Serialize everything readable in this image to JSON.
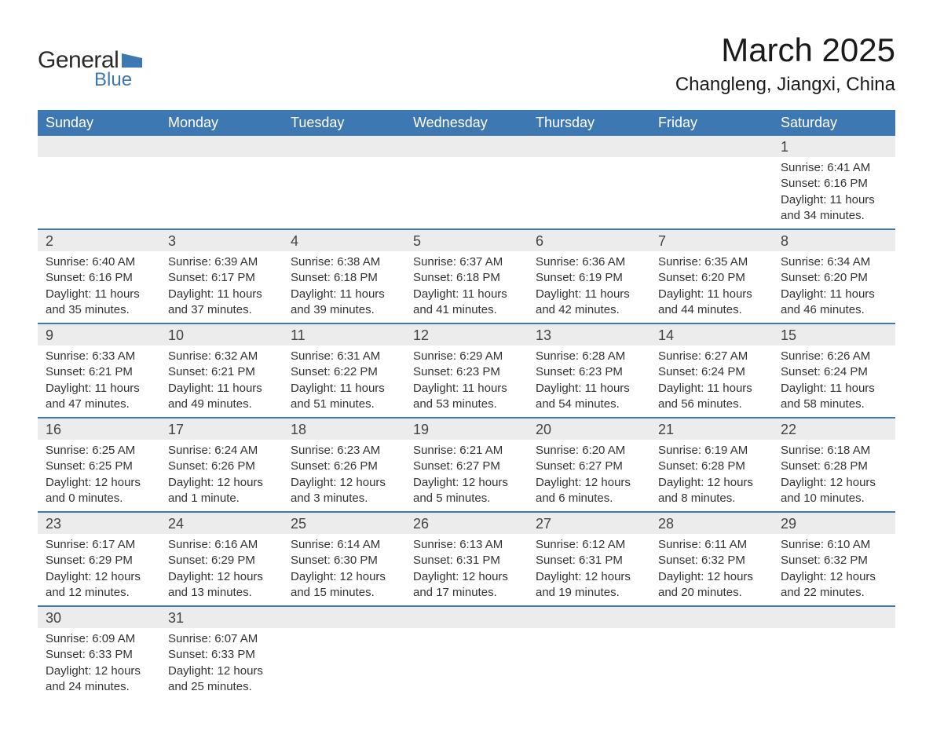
{
  "logo": {
    "text_general": "General",
    "text_blue": "Blue",
    "shape_color": "#3e78b3"
  },
  "title": "March 2025",
  "location": "Changleng, Jiangxi, China",
  "colors": {
    "header_bg": "#3e78b3",
    "header_text": "#ffffff",
    "daynum_bg": "#ececec",
    "row_divider": "#3e78b3",
    "text": "#333333",
    "page_bg": "#ffffff"
  },
  "typography": {
    "title_fontsize": 42,
    "location_fontsize": 24,
    "dayheader_fontsize": 18,
    "daynum_fontsize": 18,
    "detail_fontsize": 15,
    "font_family": "Arial"
  },
  "layout": {
    "columns": 7,
    "rows": 6,
    "first_day_column_index": 6
  },
  "day_headers": [
    "Sunday",
    "Monday",
    "Tuesday",
    "Wednesday",
    "Thursday",
    "Friday",
    "Saturday"
  ],
  "labels": {
    "sunrise": "Sunrise:",
    "sunset": "Sunset:",
    "daylight": "Daylight:"
  },
  "days": [
    {
      "n": "1",
      "sunrise": "6:41 AM",
      "sunset": "6:16 PM",
      "daylight": "11 hours and 34 minutes."
    },
    {
      "n": "2",
      "sunrise": "6:40 AM",
      "sunset": "6:16 PM",
      "daylight": "11 hours and 35 minutes."
    },
    {
      "n": "3",
      "sunrise": "6:39 AM",
      "sunset": "6:17 PM",
      "daylight": "11 hours and 37 minutes."
    },
    {
      "n": "4",
      "sunrise": "6:38 AM",
      "sunset": "6:18 PM",
      "daylight": "11 hours and 39 minutes."
    },
    {
      "n": "5",
      "sunrise": "6:37 AM",
      "sunset": "6:18 PM",
      "daylight": "11 hours and 41 minutes."
    },
    {
      "n": "6",
      "sunrise": "6:36 AM",
      "sunset": "6:19 PM",
      "daylight": "11 hours and 42 minutes."
    },
    {
      "n": "7",
      "sunrise": "6:35 AM",
      "sunset": "6:20 PM",
      "daylight": "11 hours and 44 minutes."
    },
    {
      "n": "8",
      "sunrise": "6:34 AM",
      "sunset": "6:20 PM",
      "daylight": "11 hours and 46 minutes."
    },
    {
      "n": "9",
      "sunrise": "6:33 AM",
      "sunset": "6:21 PM",
      "daylight": "11 hours and 47 minutes."
    },
    {
      "n": "10",
      "sunrise": "6:32 AM",
      "sunset": "6:21 PM",
      "daylight": "11 hours and 49 minutes."
    },
    {
      "n": "11",
      "sunrise": "6:31 AM",
      "sunset": "6:22 PM",
      "daylight": "11 hours and 51 minutes."
    },
    {
      "n": "12",
      "sunrise": "6:29 AM",
      "sunset": "6:23 PM",
      "daylight": "11 hours and 53 minutes."
    },
    {
      "n": "13",
      "sunrise": "6:28 AM",
      "sunset": "6:23 PM",
      "daylight": "11 hours and 54 minutes."
    },
    {
      "n": "14",
      "sunrise": "6:27 AM",
      "sunset": "6:24 PM",
      "daylight": "11 hours and 56 minutes."
    },
    {
      "n": "15",
      "sunrise": "6:26 AM",
      "sunset": "6:24 PM",
      "daylight": "11 hours and 58 minutes."
    },
    {
      "n": "16",
      "sunrise": "6:25 AM",
      "sunset": "6:25 PM",
      "daylight": "12 hours and 0 minutes."
    },
    {
      "n": "17",
      "sunrise": "6:24 AM",
      "sunset": "6:26 PM",
      "daylight": "12 hours and 1 minute."
    },
    {
      "n": "18",
      "sunrise": "6:23 AM",
      "sunset": "6:26 PM",
      "daylight": "12 hours and 3 minutes."
    },
    {
      "n": "19",
      "sunrise": "6:21 AM",
      "sunset": "6:27 PM",
      "daylight": "12 hours and 5 minutes."
    },
    {
      "n": "20",
      "sunrise": "6:20 AM",
      "sunset": "6:27 PM",
      "daylight": "12 hours and 6 minutes."
    },
    {
      "n": "21",
      "sunrise": "6:19 AM",
      "sunset": "6:28 PM",
      "daylight": "12 hours and 8 minutes."
    },
    {
      "n": "22",
      "sunrise": "6:18 AM",
      "sunset": "6:28 PM",
      "daylight": "12 hours and 10 minutes."
    },
    {
      "n": "23",
      "sunrise": "6:17 AM",
      "sunset": "6:29 PM",
      "daylight": "12 hours and 12 minutes."
    },
    {
      "n": "24",
      "sunrise": "6:16 AM",
      "sunset": "6:29 PM",
      "daylight": "12 hours and 13 minutes."
    },
    {
      "n": "25",
      "sunrise": "6:14 AM",
      "sunset": "6:30 PM",
      "daylight": "12 hours and 15 minutes."
    },
    {
      "n": "26",
      "sunrise": "6:13 AM",
      "sunset": "6:31 PM",
      "daylight": "12 hours and 17 minutes."
    },
    {
      "n": "27",
      "sunrise": "6:12 AM",
      "sunset": "6:31 PM",
      "daylight": "12 hours and 19 minutes."
    },
    {
      "n": "28",
      "sunrise": "6:11 AM",
      "sunset": "6:32 PM",
      "daylight": "12 hours and 20 minutes."
    },
    {
      "n": "29",
      "sunrise": "6:10 AM",
      "sunset": "6:32 PM",
      "daylight": "12 hours and 22 minutes."
    },
    {
      "n": "30",
      "sunrise": "6:09 AM",
      "sunset": "6:33 PM",
      "daylight": "12 hours and 24 minutes."
    },
    {
      "n": "31",
      "sunrise": "6:07 AM",
      "sunset": "6:33 PM",
      "daylight": "12 hours and 25 minutes."
    }
  ]
}
